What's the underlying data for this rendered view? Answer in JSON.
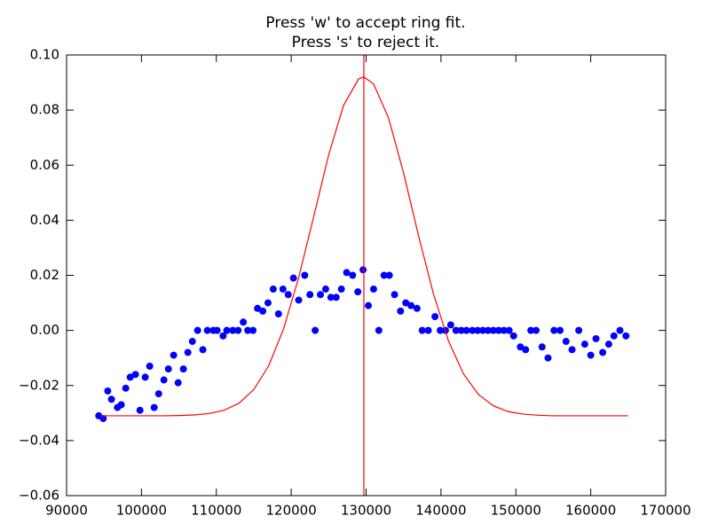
{
  "chart_data": {
    "type": "scatter",
    "title": [
      "Press 'w' to accept ring fit.",
      "Press 's' to reject it."
    ],
    "xlim": [
      90000,
      170000
    ],
    "xticks": [
      90000,
      100000,
      110000,
      120000,
      130000,
      140000,
      150000,
      160000,
      170000
    ],
    "ylim": [
      -0.06,
      0.1
    ],
    "yticks": [
      {
        "value": -0.06,
        "label": "−0.06"
      },
      {
        "value": -0.04,
        "label": "−0.04"
      },
      {
        "value": -0.02,
        "label": "−0.02"
      },
      {
        "value": 0,
        "label": "0.00"
      },
      {
        "value": 0.02,
        "label": "0.02"
      },
      {
        "value": 0.04,
        "label": "0.04"
      },
      {
        "value": 0.06,
        "label": "0.06"
      },
      {
        "value": 0.08,
        "label": "0.08"
      },
      {
        "value": 0.1,
        "label": "0.10"
      }
    ],
    "series": [
      {
        "type": "scatter",
        "color": "#0000ff",
        "x": [
          94300,
          94900,
          95500,
          96000,
          96800,
          97300,
          97900,
          98500,
          99200,
          99800,
          100500,
          101100,
          101700,
          102300,
          103000,
          103600,
          104300,
          104900,
          105600,
          106200,
          106800,
          107500,
          108200,
          108800,
          109600,
          110100,
          110900,
          111400,
          112200,
          112900,
          113600,
          114200,
          114900,
          115500,
          116200,
          116900,
          117600,
          118300,
          118900,
          119600,
          120300,
          121000,
          121800,
          122500,
          123200,
          123900,
          124600,
          125300,
          126000,
          126700,
          127400,
          128200,
          128900,
          129600,
          130300,
          131000,
          131700,
          132400,
          133100,
          133800,
          134600,
          135300,
          136000,
          136800,
          137500,
          138300,
          139200,
          139900,
          140600,
          141300,
          142000,
          142700,
          143400,
          144200,
          144900,
          145600,
          146300,
          147000,
          147700,
          148400,
          149100,
          149700,
          150600,
          151300,
          152000,
          152700,
          153500,
          154300,
          155100,
          155900,
          156700,
          157500,
          158400,
          159200,
          160000,
          160700,
          161600,
          162400,
          163100,
          163900,
          164700
        ],
        "values": [
          -0.031,
          -0.032,
          -0.022,
          -0.025,
          -0.028,
          -0.027,
          -0.021,
          -0.017,
          -0.016,
          -0.029,
          -0.017,
          -0.013,
          -0.028,
          -0.023,
          -0.018,
          -0.014,
          -0.009,
          -0.019,
          -0.014,
          -0.008,
          -0.004,
          0,
          -0.007,
          0,
          0,
          0,
          -0.002,
          0,
          0,
          0,
          0.003,
          0,
          0,
          0.008,
          0.007,
          0.01,
          0.015,
          0.006,
          0.015,
          0.013,
          0.019,
          0.011,
          0.02,
          0.013,
          0,
          0.013,
          0.015,
          0.012,
          0.012,
          0.015,
          0.021,
          0.02,
          0.014,
          0.022,
          0.009,
          0.015,
          0,
          0.02,
          0.02,
          0.013,
          0.007,
          0.01,
          0.009,
          0.008,
          0,
          0,
          0.005,
          0,
          0,
          0.002,
          0,
          0,
          0,
          0,
          0,
          0,
          0,
          0,
          0,
          0,
          0,
          -0.002,
          -0.006,
          -0.007,
          0,
          0,
          -0.006,
          -0.01,
          0,
          0,
          -0.004,
          -0.007,
          0,
          -0.005,
          -0.009,
          -0.003,
          -0.008,
          -0.005,
          -0.002,
          0,
          -0.002
        ]
      },
      {
        "type": "line",
        "color": "#ff0000",
        "x": [
          94500,
          97000,
          99000,
          101000,
          103000,
          105000,
          107000,
          109000,
          111000,
          113000,
          115000,
          117000,
          119000,
          121000,
          123000,
          125000,
          127000,
          129000,
          129700,
          131000,
          133000,
          135000,
          137000,
          139000,
          141000,
          143000,
          145000,
          147000,
          149000,
          151000,
          153000,
          155000,
          160000,
          165000
        ],
        "values": [
          -0.031,
          -0.031,
          -0.031,
          -0.031,
          -0.031,
          -0.0309,
          -0.0307,
          -0.0302,
          -0.029,
          -0.0265,
          -0.0215,
          -0.0128,
          0.0007,
          0.0192,
          0.0413,
          0.0637,
          0.0818,
          0.0913,
          0.092,
          0.0895,
          0.0771,
          0.0572,
          0.0344,
          0.0132,
          -0.0038,
          -0.0158,
          -0.0233,
          -0.0274,
          -0.0295,
          -0.0304,
          -0.0308,
          -0.031,
          -0.031,
          -0.031
        ]
      }
    ],
    "vline": {
      "value": 129700,
      "color": "#ff0000"
    }
  }
}
